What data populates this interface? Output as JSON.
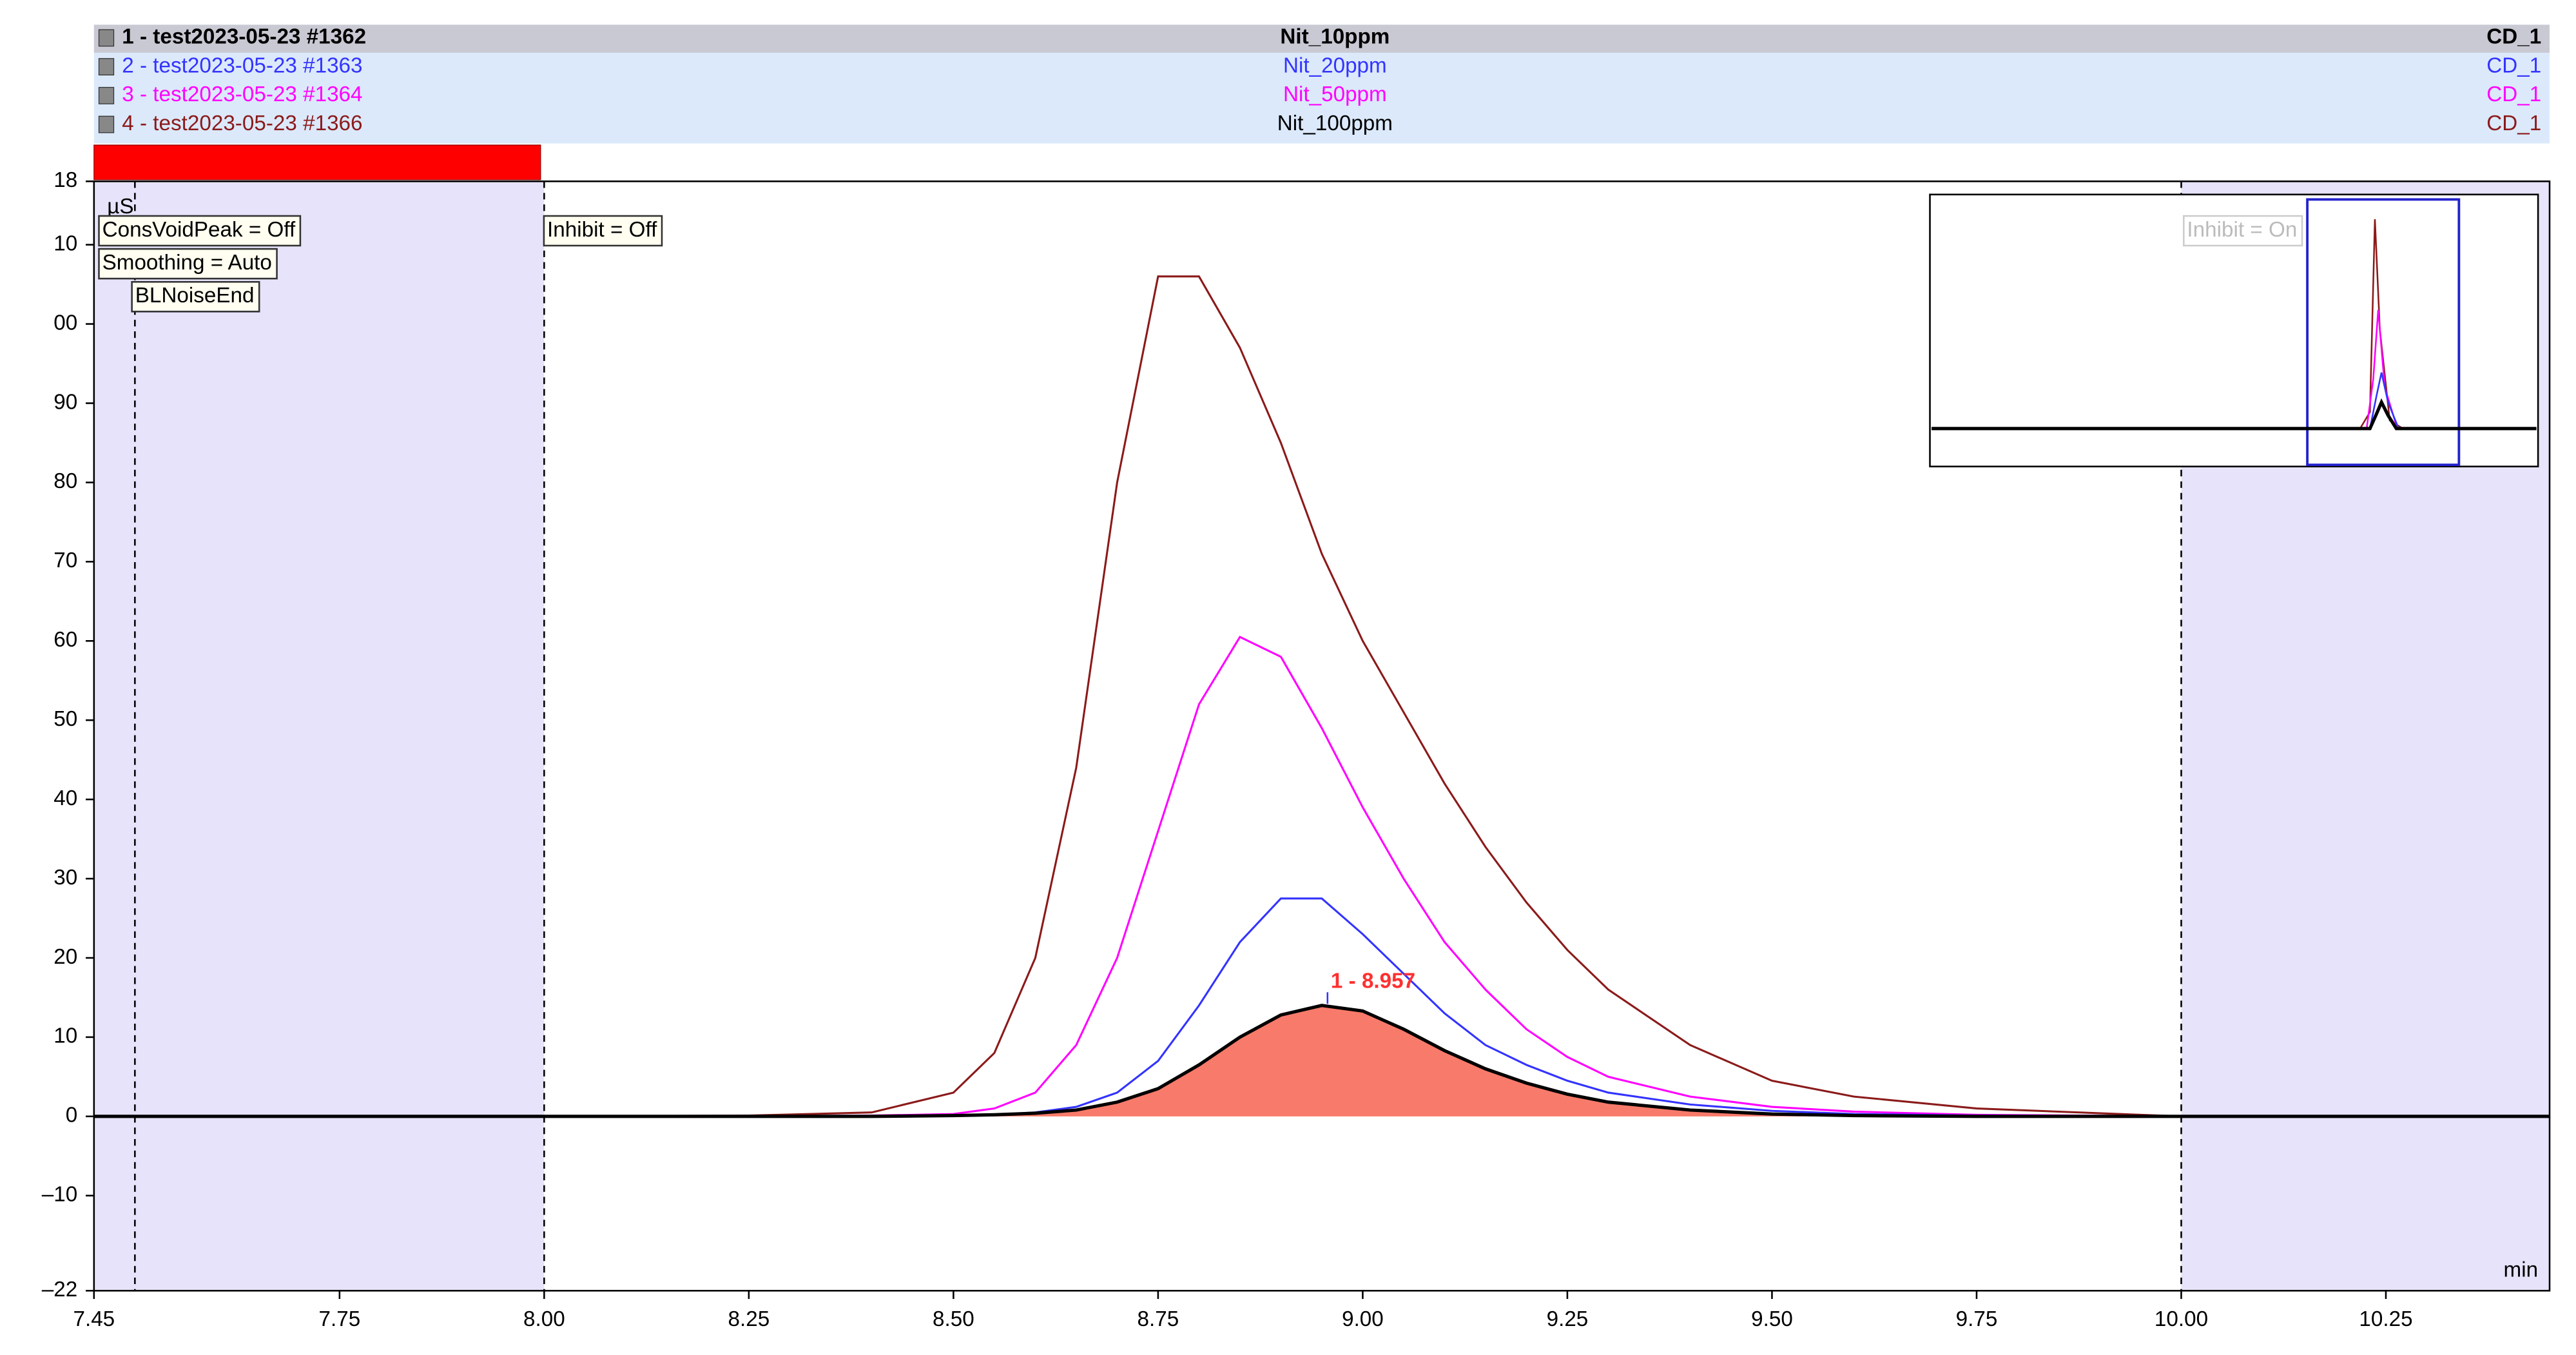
{
  "chart_data": {
    "type": "line",
    "y_unit": "µS",
    "x_unit": "min",
    "x": [
      7.45,
      8.0,
      8.25,
      8.4,
      8.5,
      8.55,
      8.6,
      8.65,
      8.7,
      8.75,
      8.8,
      8.85,
      8.9,
      8.95,
      9.0,
      9.05,
      9.1,
      9.15,
      9.2,
      9.25,
      9.3,
      9.4,
      9.5,
      9.6,
      9.75,
      10.0,
      10.45
    ],
    "series": [
      {
        "name": "1 - test2023-05-23 #1362",
        "sample": "Nit_10ppm",
        "channel": "CD_1",
        "color": "#000000",
        "values": [
          0,
          0,
          0,
          0,
          0.1,
          0.2,
          0.4,
          0.8,
          1.8,
          3.5,
          6.5,
          10,
          12.8,
          14,
          13.3,
          11,
          8.3,
          6,
          4.2,
          2.8,
          1.8,
          0.8,
          0.3,
          0.1,
          0,
          0,
          0
        ]
      },
      {
        "name": "2 - test2023-05-23 #1363",
        "sample": "Nit_20ppm",
        "channel": "CD_1",
        "color": "#3333ff",
        "values": [
          0,
          0,
          0,
          0,
          0.1,
          0.2,
          0.5,
          1.2,
          3,
          7,
          14,
          22,
          27.5,
          27.5,
          23,
          18,
          13,
          9,
          6.5,
          4.5,
          3,
          1.5,
          0.7,
          0.3,
          0.1,
          0,
          0
        ]
      },
      {
        "name": "3 - test2023-05-23 #1364",
        "sample": "Nit_50ppm",
        "channel": "CD_1",
        "color": "#ff00ff",
        "values": [
          0,
          0,
          0,
          0.1,
          0.3,
          1,
          3,
          9,
          20,
          36,
          52,
          60.5,
          58,
          49,
          39,
          30,
          22,
          16,
          11,
          7.5,
          5,
          2.5,
          1.2,
          0.6,
          0.2,
          0,
          0
        ]
      },
      {
        "name": "4 - test2023-05-23 #1366",
        "sample": "Nit_100ppm",
        "channel": "CD_1",
        "color": "#8b1a1a",
        "values": [
          0,
          0,
          0.1,
          0.5,
          3,
          8,
          20,
          44,
          80,
          106,
          106,
          97,
          85,
          71,
          60,
          51,
          42,
          34,
          27,
          21,
          16,
          9,
          4.5,
          2.5,
          1,
          0,
          0
        ]
      }
    ],
    "fill_color": "#f87a6a",
    "peak": {
      "label": "1 - 8.957",
      "retention_time": 8.957
    },
    "events": [
      {
        "label": "ConsVoidPeak = Off",
        "x": 7.45
      },
      {
        "label": "Smoothing = Auto",
        "x": 7.45
      },
      {
        "label": "BLNoiseEnd",
        "x": 7.5
      },
      {
        "label": "Inhibit = Off",
        "x": 8.0
      },
      {
        "label": "Inhibit = On",
        "x": 10.0
      }
    ],
    "xlim": [
      7.45,
      10.45
    ],
    "xticks": [
      7.45,
      7.75,
      {
        "value": 8.0,
        "label": "8.00"
      },
      8.25,
      {
        "value": 8.5,
        "label": "8.50"
      },
      8.75,
      {
        "value": 9.0,
        "label": "9.00"
      },
      9.25,
      {
        "value": 9.5,
        "label": "9.50"
      },
      9.75,
      {
        "value": 10.0,
        "label": "10.00"
      },
      10.25
    ],
    "ylim": [
      -22,
      118
    ],
    "yticks": [
      {
        "value": -22,
        "label": "–22"
      },
      {
        "value": -10,
        "label": "–10"
      },
      0,
      10,
      20,
      30,
      40,
      50,
      60,
      70,
      80,
      90,
      {
        "value": 100,
        "label": "00"
      },
      {
        "value": 110,
        "label": "10"
      },
      {
        "value": 118,
        "label": "18"
      }
    ]
  }
}
